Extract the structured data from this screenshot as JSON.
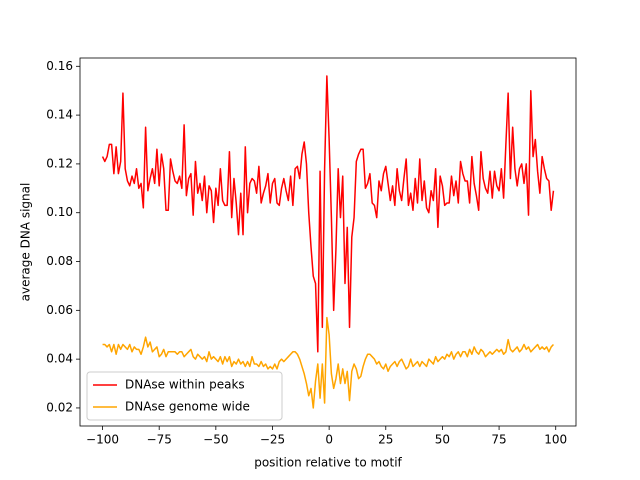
{
  "chart_data": {
    "type": "line",
    "xlabel": "position relative to motif",
    "ylabel": "average DNA signal",
    "x": [
      -100,
      -99,
      -98,
      -97,
      -96,
      -95,
      -94,
      -93,
      -92,
      -91,
      -90,
      -89,
      -88,
      -87,
      -86,
      -85,
      -84,
      -83,
      -82,
      -81,
      -80,
      -79,
      -78,
      -77,
      -76,
      -75,
      -74,
      -73,
      -72,
      -71,
      -70,
      -69,
      -68,
      -67,
      -66,
      -65,
      -64,
      -63,
      -62,
      -61,
      -60,
      -59,
      -58,
      -57,
      -56,
      -55,
      -54,
      -53,
      -52,
      -51,
      -50,
      -49,
      -48,
      -47,
      -46,
      -45,
      -44,
      -43,
      -42,
      -41,
      -40,
      -39,
      -38,
      -37,
      -36,
      -35,
      -34,
      -33,
      -32,
      -31,
      -30,
      -29,
      -28,
      -27,
      -26,
      -25,
      -24,
      -23,
      -22,
      -21,
      -20,
      -19,
      -18,
      -17,
      -16,
      -15,
      -14,
      -13,
      -12,
      -11,
      -10,
      -9,
      -8,
      -7,
      -6,
      -5,
      -4,
      -3,
      -2,
      -1,
      0,
      1,
      2,
      3,
      4,
      5,
      6,
      7,
      8,
      9,
      10,
      11,
      12,
      13,
      14,
      15,
      16,
      17,
      18,
      19,
      20,
      21,
      22,
      23,
      24,
      25,
      26,
      27,
      28,
      29,
      30,
      31,
      32,
      33,
      34,
      35,
      36,
      37,
      38,
      39,
      40,
      41,
      42,
      43,
      44,
      45,
      46,
      47,
      48,
      49,
      50,
      51,
      52,
      53,
      54,
      55,
      56,
      57,
      58,
      59,
      60,
      61,
      62,
      63,
      64,
      65,
      66,
      67,
      68,
      69,
      70,
      71,
      72,
      73,
      74,
      75,
      76,
      77,
      78,
      79,
      80,
      81,
      82,
      83,
      84,
      85,
      86,
      87,
      88,
      89,
      90,
      91,
      92,
      93,
      94,
      95,
      96,
      97,
      98,
      99
    ],
    "series": [
      {
        "name": "DNAse within peaks",
        "color": "#ff0000",
        "values": [
          0.123,
          0.121,
          0.123,
          0.128,
          0.128,
          0.116,
          0.127,
          0.116,
          0.121,
          0.149,
          0.118,
          0.113,
          0.111,
          0.115,
          0.112,
          0.118,
          0.11,
          0.112,
          0.102,
          0.135,
          0.109,
          0.114,
          0.118,
          0.112,
          0.126,
          0.111,
          0.124,
          0.118,
          0.101,
          0.101,
          0.122,
          0.117,
          0.113,
          0.112,
          0.115,
          0.11,
          0.136,
          0.107,
          0.114,
          0.116,
          0.099,
          0.121,
          0.108,
          0.112,
          0.105,
          0.115,
          0.1,
          0.111,
          0.109,
          0.096,
          0.11,
          0.103,
          0.118,
          0.105,
          0.103,
          0.103,
          0.125,
          0.098,
          0.114,
          0.104,
          0.091,
          0.108,
          0.091,
          0.127,
          0.1,
          0.112,
          0.114,
          0.113,
          0.108,
          0.119,
          0.104,
          0.108,
          0.111,
          0.116,
          0.104,
          0.112,
          0.114,
          0.104,
          0.103,
          0.11,
          0.114,
          0.109,
          0.105,
          0.115,
          0.103,
          0.118,
          0.119,
          0.114,
          0.124,
          0.129,
          0.12,
          0.1,
          0.086,
          0.074,
          0.071,
          0.043,
          0.117,
          0.053,
          0.118,
          0.156,
          0.13,
          0.098,
          0.06,
          0.085,
          0.118,
          0.098,
          0.115,
          0.071,
          0.094,
          0.053,
          0.09,
          0.098,
          0.121,
          0.124,
          0.126,
          0.126,
          0.11,
          0.112,
          0.116,
          0.104,
          0.103,
          0.098,
          0.113,
          0.109,
          0.116,
          0.119,
          0.112,
          0.105,
          0.111,
          0.103,
          0.118,
          0.109,
          0.105,
          0.114,
          0.122,
          0.103,
          0.108,
          0.101,
          0.114,
          0.104,
          0.122,
          0.105,
          0.113,
          0.102,
          0.1,
          0.109,
          0.105,
          0.118,
          0.094,
          0.115,
          0.111,
          0.103,
          0.104,
          0.104,
          0.115,
          0.107,
          0.113,
          0.104,
          0.121,
          0.116,
          0.113,
          0.113,
          0.104,
          0.123,
          0.112,
          0.107,
          0.101,
          0.125,
          0.114,
          0.11,
          0.108,
          0.117,
          0.106,
          0.117,
          0.111,
          0.109,
          0.118,
          0.106,
          0.128,
          0.149,
          0.114,
          0.135,
          0.118,
          0.111,
          0.118,
          0.12,
          0.112,
          0.12,
          0.099,
          0.15,
          0.123,
          0.13,
          0.117,
          0.108,
          0.123,
          0.118,
          0.114,
          0.113,
          0.101,
          0.109
        ]
      },
      {
        "name": "DNAse genome wide",
        "color": "#ffa500",
        "values": [
          0.046,
          0.046,
          0.045,
          0.046,
          0.043,
          0.046,
          0.042,
          0.046,
          0.044,
          0.046,
          0.045,
          0.044,
          0.046,
          0.043,
          0.045,
          0.044,
          0.044,
          0.042,
          0.045,
          0.049,
          0.045,
          0.047,
          0.043,
          0.044,
          0.045,
          0.041,
          0.042,
          0.044,
          0.041,
          0.043,
          0.043,
          0.043,
          0.043,
          0.042,
          0.043,
          0.043,
          0.041,
          0.042,
          0.043,
          0.044,
          0.041,
          0.04,
          0.042,
          0.041,
          0.04,
          0.041,
          0.039,
          0.043,
          0.04,
          0.041,
          0.04,
          0.039,
          0.041,
          0.038,
          0.041,
          0.039,
          0.041,
          0.037,
          0.039,
          0.038,
          0.04,
          0.038,
          0.039,
          0.037,
          0.039,
          0.037,
          0.041,
          0.038,
          0.038,
          0.037,
          0.039,
          0.037,
          0.038,
          0.036,
          0.037,
          0.036,
          0.038,
          0.036,
          0.039,
          0.04,
          0.039,
          0.04,
          0.041,
          0.042,
          0.043,
          0.043,
          0.042,
          0.04,
          0.037,
          0.034,
          0.03,
          0.025,
          0.028,
          0.02,
          0.031,
          0.038,
          0.024,
          0.038,
          0.022,
          0.057,
          0.05,
          0.034,
          0.028,
          0.032,
          0.038,
          0.03,
          0.036,
          0.03,
          0.035,
          0.023,
          0.035,
          0.038,
          0.036,
          0.032,
          0.033,
          0.037,
          0.04,
          0.042,
          0.042,
          0.041,
          0.04,
          0.038,
          0.039,
          0.037,
          0.036,
          0.038,
          0.035,
          0.037,
          0.038,
          0.039,
          0.037,
          0.039,
          0.04,
          0.038,
          0.036,
          0.037,
          0.04,
          0.037,
          0.038,
          0.039,
          0.037,
          0.039,
          0.038,
          0.037,
          0.04,
          0.039,
          0.038,
          0.041,
          0.039,
          0.04,
          0.041,
          0.04,
          0.042,
          0.041,
          0.043,
          0.04,
          0.042,
          0.043,
          0.041,
          0.043,
          0.043,
          0.041,
          0.044,
          0.042,
          0.045,
          0.043,
          0.042,
          0.044,
          0.043,
          0.041,
          0.042,
          0.043,
          0.042,
          0.043,
          0.044,
          0.043,
          0.044,
          0.042,
          0.043,
          0.048,
          0.044,
          0.043,
          0.044,
          0.045,
          0.043,
          0.044,
          0.046,
          0.044,
          0.045,
          0.043,
          0.044,
          0.045,
          0.046,
          0.044,
          0.045,
          0.044,
          0.045,
          0.043,
          0.045,
          0.046
        ]
      }
    ],
    "xlim": [
      -109.95,
      108.95
    ],
    "ylim": [
      0.0126,
      0.1634
    ],
    "xticks": [
      {
        "value": -100,
        "label": "−100"
      },
      {
        "value": -75,
        "label": "−75"
      },
      {
        "value": -50,
        "label": "−50"
      },
      {
        "value": -25,
        "label": "−25"
      },
      0,
      25,
      50,
      75,
      100
    ],
    "yticks": [
      0.02,
      0.04,
      0.06,
      0.08,
      {
        "value": 0.1,
        "label": "0.10"
      },
      0.12,
      0.14,
      0.16
    ],
    "legend": "lower left"
  }
}
